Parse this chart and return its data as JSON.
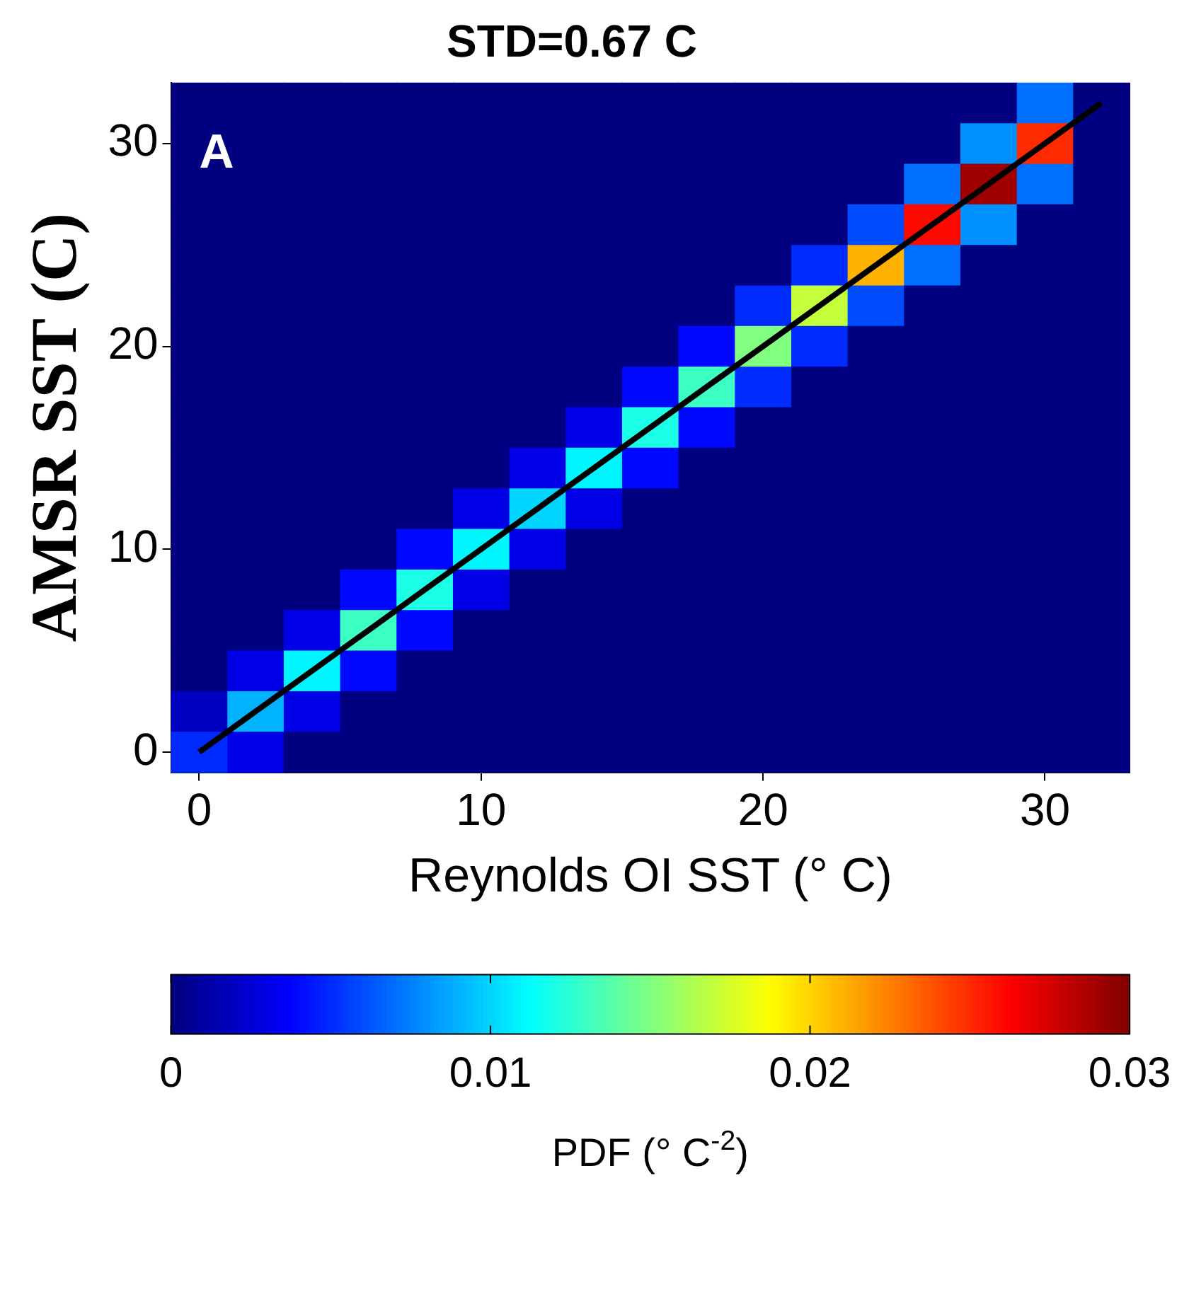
{
  "chart_data": {
    "type": "heatmap",
    "title": "STD=0.67 C",
    "xlabel": "Reynolds OI SST (° C)",
    "ylabel": "AMSR SST (C)",
    "clabel": "PDF (° C$^{-2}$)",
    "annotations": [
      "A"
    ],
    "categories": [
      "0",
      null,
      null,
      null,
      null,
      "10",
      null,
      null,
      null,
      null,
      "20",
      null,
      null,
      null,
      null,
      "30",
      null
    ],
    "ylim": [
      -1,
      33
    ],
    "yticks": [
      0,
      10,
      20,
      30
    ],
    "clim": [
      0,
      0.03
    ],
    "cticks": [
      0,
      0.01,
      0.02,
      0.03
    ],
    "grid": false,
    "legend": false,
    "cells": [
      [
        0,
        0,
        0,
        0,
        0,
        0,
        0,
        0,
        0,
        0,
        0,
        0,
        0,
        0,
        0,
        0.007,
        0
      ],
      [
        0,
        0,
        0,
        0,
        0,
        0,
        0,
        0,
        0,
        0,
        0,
        0,
        0,
        0,
        0.008,
        0.025,
        0
      ],
      [
        0,
        0,
        0,
        0,
        0,
        0,
        0,
        0,
        0,
        0,
        0,
        0,
        0,
        0.007,
        0.029,
        0.007,
        0
      ],
      [
        0,
        0,
        0,
        0,
        0,
        0,
        0,
        0,
        0,
        0,
        0,
        0,
        0.006,
        0.026,
        0.008,
        0,
        0
      ],
      [
        0,
        0,
        0,
        0,
        0,
        0,
        0,
        0,
        0,
        0,
        0,
        0.005,
        0.021,
        0.007,
        0,
        0,
        0
      ],
      [
        0,
        0,
        0,
        0,
        0,
        0,
        0,
        0,
        0,
        0,
        0.005,
        0.017,
        0.006,
        0,
        0,
        0,
        0
      ],
      [
        0,
        0,
        0,
        0,
        0,
        0,
        0,
        0,
        0,
        0.004,
        0.015,
        0.005,
        0,
        0,
        0,
        0,
        0
      ],
      [
        0,
        0,
        0,
        0,
        0,
        0,
        0,
        0,
        0.004,
        0.013,
        0.005,
        0,
        0,
        0,
        0,
        0,
        0
      ],
      [
        0,
        0,
        0,
        0,
        0,
        0,
        0,
        0.003,
        0.012,
        0.004,
        0,
        0,
        0,
        0,
        0,
        0,
        0
      ],
      [
        0,
        0,
        0,
        0,
        0,
        0,
        0.003,
        0.011,
        0.004,
        0,
        0,
        0,
        0,
        0,
        0,
        0,
        0
      ],
      [
        0,
        0,
        0,
        0,
        0,
        0.003,
        0.01,
        0.003,
        0,
        0,
        0,
        0,
        0,
        0,
        0,
        0,
        0
      ],
      [
        0,
        0,
        0,
        0,
        0.004,
        0.011,
        0.003,
        0,
        0,
        0,
        0,
        0,
        0,
        0,
        0,
        0,
        0
      ],
      [
        0,
        0,
        0,
        0.004,
        0.012,
        0.003,
        0,
        0,
        0,
        0,
        0,
        0,
        0,
        0,
        0,
        0,
        0
      ],
      [
        0,
        0,
        0.003,
        0.013,
        0.004,
        0,
        0,
        0,
        0,
        0,
        0,
        0,
        0,
        0,
        0,
        0,
        0
      ],
      [
        0,
        0.003,
        0.011,
        0.004,
        0,
        0,
        0,
        0,
        0,
        0,
        0,
        0,
        0,
        0,
        0,
        0,
        0
      ],
      [
        0.002,
        0.009,
        0.003,
        0,
        0,
        0,
        0,
        0,
        0,
        0,
        0,
        0,
        0,
        0,
        0,
        0,
        0
      ],
      [
        0.005,
        0.003,
        0,
        0,
        0,
        0,
        0,
        0,
        0,
        0,
        0,
        0,
        0,
        0,
        0,
        0,
        0
      ]
    ],
    "series": [
      {
        "type": "line",
        "values": [
          0,
          2,
          4,
          6,
          8,
          10,
          12,
          14,
          16,
          18,
          20,
          22,
          24,
          26,
          28,
          30,
          32
        ],
        "color": "#000000"
      }
    ]
  }
}
